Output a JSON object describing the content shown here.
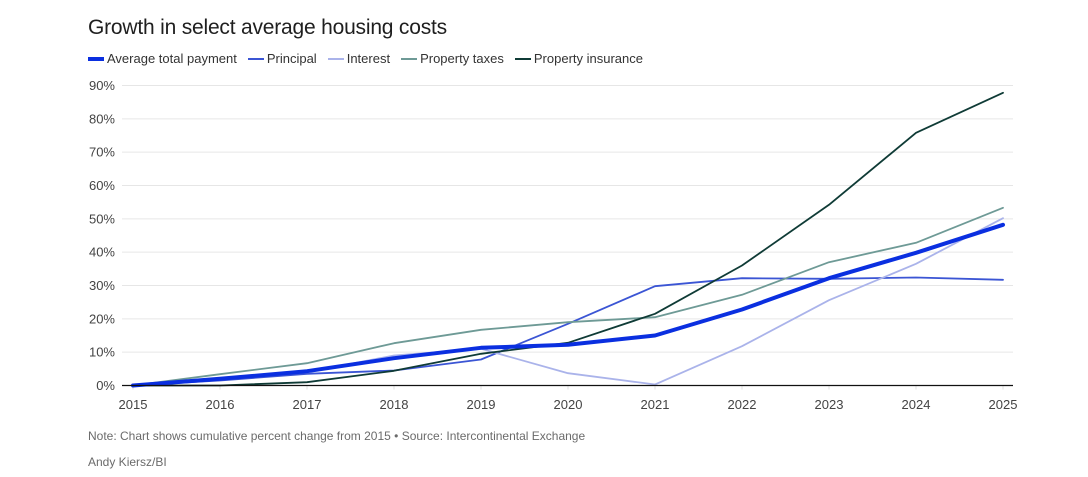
{
  "title": "Growth in select average housing costs",
  "footer": {
    "note": "Note: Chart shows cumulative percent change from 2015 • Source: Intercontinental Exchange",
    "credit": "Andy Kiersz/BI"
  },
  "chart_data": {
    "type": "line",
    "title": "Growth in select average housing costs",
    "xlabel": "",
    "ylabel": "",
    "x": [
      2015,
      2016,
      2017,
      2018,
      2019,
      2020,
      2021,
      2022,
      2023,
      2024,
      2025
    ],
    "x_tick_labels": [
      "2015",
      "2016",
      "2017",
      "2018",
      "2019",
      "2020",
      "2021",
      "2022",
      "2023",
      "2024",
      "2025"
    ],
    "y_ticks": [
      0,
      10,
      20,
      30,
      40,
      50,
      60,
      70,
      80,
      90
    ],
    "y_tick_labels": [
      "0%",
      "10%",
      "20%",
      "30%",
      "40%",
      "50%",
      "60%",
      "70%",
      "80%",
      "90%"
    ],
    "ylim": [
      0,
      90
    ],
    "grid": true,
    "legend_position": "top-left",
    "series": [
      {
        "name": "Average total payment",
        "color": "#0a2fe0",
        "weight": "thick",
        "values": [
          0,
          2,
          4.3,
          8.2,
          11.3,
          12.2,
          15,
          22.8,
          32.2,
          39.8,
          48.2
        ]
      },
      {
        "name": "Principal",
        "color": "#3b55d4",
        "weight": "normal",
        "values": [
          0,
          1.5,
          3.5,
          4.5,
          7.8,
          18.5,
          29.8,
          32.2,
          32,
          32.4,
          31.7
        ]
      },
      {
        "name": "Interest",
        "color": "#aab3ea",
        "weight": "normal",
        "values": [
          0,
          2.2,
          4,
          9,
          11,
          3.7,
          0.3,
          11.8,
          25.6,
          36.5,
          50.2
        ]
      },
      {
        "name": "Property taxes",
        "color": "#6e9a96",
        "weight": "normal",
        "values": [
          0,
          3.4,
          6.7,
          12.7,
          16.7,
          19,
          20.5,
          27.2,
          37,
          42.8,
          53.3
        ]
      },
      {
        "name": "Property insurance",
        "color": "#0f3b36",
        "weight": "normal",
        "values": [
          0,
          0,
          1,
          4.4,
          9.5,
          12.8,
          21.5,
          36,
          54.2,
          75.8,
          87.8
        ]
      }
    ]
  }
}
